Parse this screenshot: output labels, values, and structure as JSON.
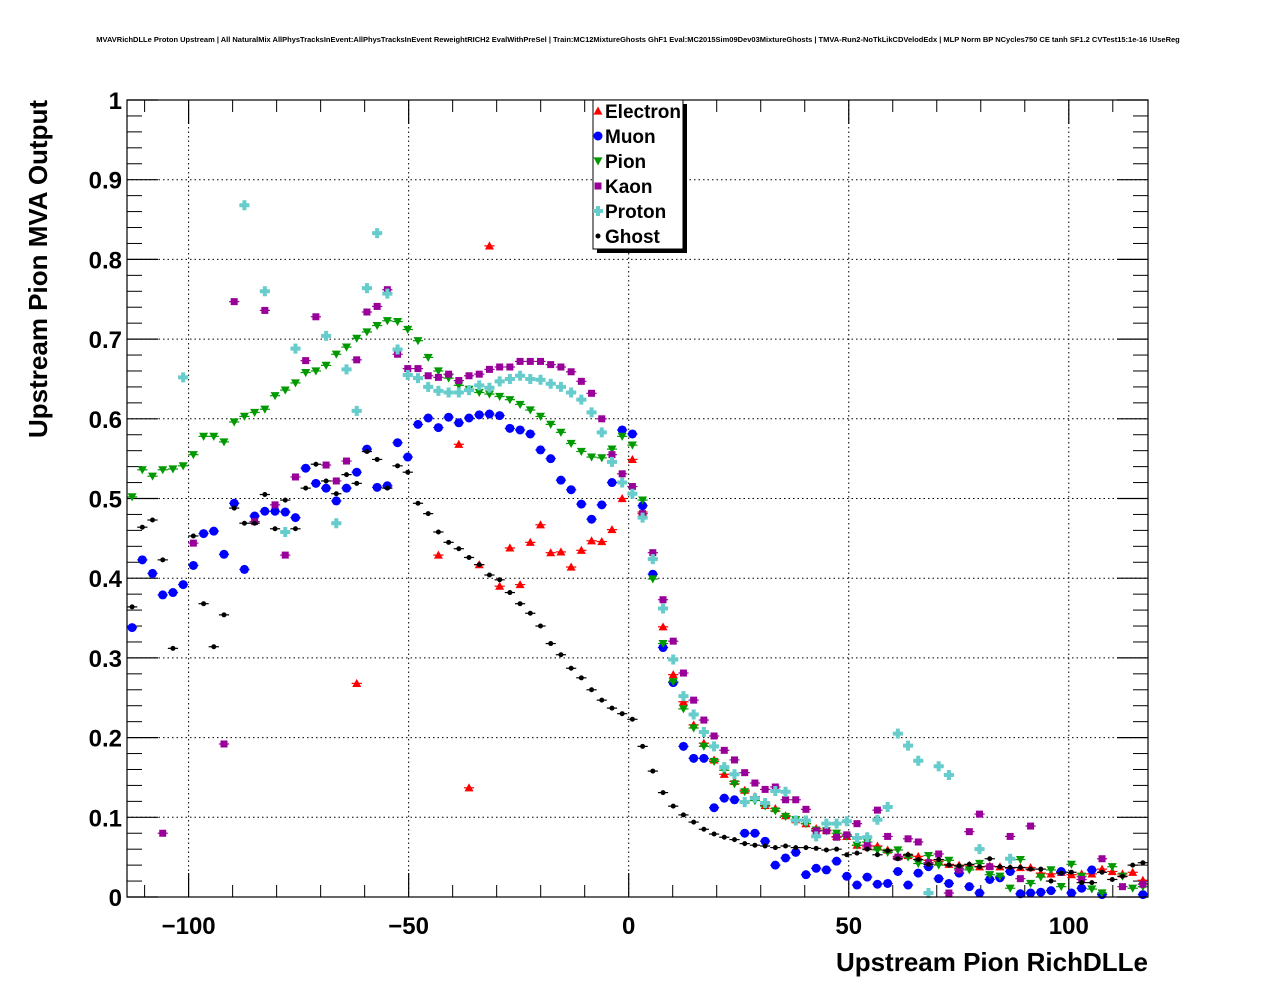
{
  "chart_data": {
    "type": "scatter",
    "title": "MVAVRichDLLe Proton Upstream | All NaturalMix AllPhysTracksInEvent:AllPhysTracksInEvent ReweightRICH2 EvalWithPreSel | Train:MC12MixtureGhosts GhF1 Eval:MC2015Sim09Dev03MixtureGhosts | TMVA-Run2-NoTkLikCDVelodEdx | MLP Norm BP NCycles750 CE tanh SF1.2 CVTest15:1e-16 !UseReg",
    "xlabel": "Upstream Pion RichDLLe",
    "ylabel": "Upstream Pion MVA Output",
    "xlim": [
      -114,
      118
    ],
    "ylim": [
      0,
      1
    ],
    "nbins": 100,
    "grid": true,
    "legend_position": "top-center",
    "x_ticks": [
      -100,
      -50,
      0,
      50,
      100
    ],
    "x_tick_labels": [
      "−100",
      "−50",
      "0",
      "50",
      "100"
    ],
    "y_ticks": [
      0,
      0.1,
      0.2,
      0.3,
      0.4,
      0.5,
      0.6,
      0.7,
      0.8,
      0.9,
      1
    ],
    "y_tick_labels": [
      "0",
      "0.1",
      "0.2",
      "0.3",
      "0.4",
      "0.5",
      "0.6",
      "0.7",
      "0.8",
      "0.9",
      "1"
    ],
    "series": [
      {
        "name": "Electron",
        "color": "#ff0000",
        "marker": "triangle-up",
        "values": [
          null,
          null,
          null,
          null,
          null,
          null,
          null,
          null,
          null,
          null,
          null,
          null,
          null,
          null,
          null,
          null,
          null,
          null,
          null,
          null,
          null,
          null,
          0.268,
          null,
          null,
          null,
          null,
          null,
          null,
          null,
          0.429,
          null,
          0.568,
          0.137,
          0.417,
          0.817,
          0.39,
          0.438,
          0.392,
          0.445,
          0.467,
          0.432,
          0.433,
          0.414,
          0.435,
          0.447,
          0.446,
          0.461,
          0.5,
          0.549,
          0.483,
          null,
          0.339,
          0.279,
          0.245,
          0.216,
          0.193,
          0.172,
          0.154,
          0.145,
          0.134,
          0.126,
          0.115,
          0.111,
          0.102,
          0.097,
          0.092,
          0.086,
          0.084,
          0.076,
          0.076,
          0.065,
          0.063,
          0.064,
          0.059,
          0.051,
          0.052,
          0.051,
          0.046,
          0.045,
          0.041,
          0.04,
          0.04,
          0.038,
          0.039,
          0.038,
          0.036,
          0.037,
          0.037,
          0.03,
          0.029,
          0.031,
          0.028,
          0.029,
          0.029,
          0.035,
          0.032,
          0.029,
          0.031,
          0.021
        ]
      },
      {
        "name": "Muon",
        "color": "#0000ff",
        "marker": "circle",
        "values": [
          0.338,
          0.423,
          0.406,
          0.379,
          0.382,
          0.392,
          0.416,
          0.456,
          0.459,
          0.43,
          0.494,
          0.411,
          0.478,
          0.484,
          0.484,
          0.483,
          0.476,
          0.538,
          0.519,
          0.513,
          0.497,
          0.513,
          0.533,
          0.562,
          0.514,
          0.516,
          0.57,
          0.552,
          0.593,
          0.601,
          0.589,
          0.602,
          0.595,
          0.601,
          0.605,
          0.606,
          0.604,
          0.588,
          0.586,
          0.581,
          0.561,
          0.55,
          0.523,
          0.511,
          0.493,
          0.474,
          0.492,
          0.52,
          0.586,
          0.581,
          0.491,
          0.405,
          0.313,
          0.269,
          0.189,
          0.174,
          0.174,
          0.112,
          0.124,
          0.122,
          0.08,
          0.08,
          0.07,
          0.04,
          0.049,
          0.056,
          0.028,
          0.036,
          0.034,
          0.045,
          0.026,
          0.015,
          0.025,
          0.016,
          0.017,
          0.032,
          0.015,
          0.03,
          0.038,
          0.023,
          0.017,
          0.03,
          0.013,
          0.005,
          0.022,
          0.024,
          0.032,
          0.004,
          0.005,
          0.006,
          0.008,
          0.032,
          0.005,
          0.011,
          0.034,
          0.003,
          null,
          null,
          null,
          0.003
        ]
      },
      {
        "name": "Pion",
        "color": "#009900",
        "marker": "triangle-down",
        "values": [
          0.502,
          0.536,
          0.528,
          0.536,
          0.537,
          0.541,
          0.555,
          0.578,
          0.578,
          0.571,
          0.596,
          0.603,
          0.608,
          0.612,
          0.629,
          0.636,
          0.645,
          0.658,
          0.66,
          0.667,
          0.681,
          0.69,
          0.701,
          0.709,
          0.717,
          0.723,
          0.722,
          0.712,
          0.698,
          0.677,
          0.66,
          0.651,
          0.642,
          0.637,
          0.633,
          0.631,
          0.628,
          0.624,
          0.618,
          0.611,
          0.603,
          0.593,
          0.583,
          0.569,
          0.559,
          0.552,
          0.551,
          0.562,
          0.578,
          0.567,
          0.498,
          0.399,
          0.318,
          0.27,
          0.236,
          0.212,
          0.189,
          0.17,
          0.159,
          0.142,
          0.132,
          0.121,
          0.114,
          0.108,
          0.101,
          0.097,
          0.092,
          0.084,
          0.083,
          0.08,
          0.076,
          0.065,
          0.069,
          0.059,
          0.056,
          0.059,
          0.05,
          0.042,
          0.052,
          0.04,
          0.046,
          0.036,
          0.034,
          0.042,
          0.028,
          0.026,
          0.011,
          0.047,
          0.017,
          0.025,
          0.034,
          0.013,
          0.041,
          0.026,
          0.01,
          0.005,
          0.038,
          0.026,
          0.011,
          0.013
        ]
      },
      {
        "name": "Kaon",
        "color": "#990099",
        "marker": "square",
        "values": [
          null,
          null,
          null,
          0.08,
          null,
          null,
          0.444,
          null,
          null,
          0.192,
          0.747,
          null,
          0.471,
          0.736,
          0.492,
          0.429,
          0.527,
          0.673,
          0.728,
          0.542,
          0.522,
          0.547,
          0.674,
          0.734,
          0.741,
          0.762,
          0.681,
          0.663,
          0.663,
          0.654,
          0.652,
          0.656,
          0.648,
          0.654,
          0.656,
          0.662,
          0.665,
          0.665,
          0.672,
          0.672,
          0.672,
          0.668,
          0.665,
          0.659,
          0.647,
          0.632,
          0.6,
          0.555,
          0.531,
          0.515,
          0.481,
          0.432,
          0.373,
          0.321,
          0.281,
          0.247,
          0.222,
          0.202,
          0.184,
          0.172,
          0.156,
          0.143,
          0.135,
          0.138,
          0.122,
          0.122,
          0.11,
          0.083,
          0.083,
          0.075,
          0.078,
          0.092,
          0.065,
          0.109,
          0.076,
          0.05,
          0.073,
          0.069,
          0.043,
          0.054,
          0.005,
          0.034,
          0.082,
          0.104,
          0.038,
          null,
          0.076,
          0.023,
          0.089,
          null,
          null,
          null,
          null,
          0.022,
          null,
          0.048,
          null,
          0.013,
          null,
          0.016
        ]
      },
      {
        "name": "Proton",
        "color": "#66cccc",
        "marker": "cross",
        "values": [
          null,
          null,
          null,
          null,
          null,
          0.652,
          null,
          null,
          null,
          null,
          null,
          0.868,
          null,
          0.76,
          null,
          0.458,
          0.688,
          null,
          null,
          0.704,
          0.469,
          0.662,
          0.61,
          0.764,
          0.833,
          0.757,
          0.687,
          0.655,
          0.651,
          0.64,
          0.635,
          0.633,
          0.633,
          0.636,
          0.642,
          0.639,
          0.647,
          0.65,
          0.654,
          0.65,
          0.649,
          0.644,
          0.64,
          0.633,
          0.624,
          0.608,
          0.583,
          0.546,
          0.52,
          0.506,
          0.476,
          0.424,
          0.362,
          0.298,
          0.252,
          0.229,
          0.207,
          0.189,
          0.163,
          0.154,
          0.119,
          0.124,
          0.118,
          0.133,
          0.132,
          0.096,
          0.096,
          0.076,
          0.092,
          0.092,
          0.095,
          0.074,
          0.075,
          0.097,
          0.113,
          0.205,
          0.19,
          0.171,
          0.005,
          0.164,
          0.153,
          null,
          null,
          0.06,
          null,
          null,
          0.048,
          null,
          null,
          null,
          null,
          null,
          null,
          null,
          null,
          null,
          null,
          null,
          null,
          null
        ]
      },
      {
        "name": "Ghost",
        "color": "#000000",
        "marker": "dot",
        "values": [
          0.364,
          0.464,
          0.473,
          0.423,
          0.312,
          null,
          0.453,
          0.368,
          0.314,
          0.354,
          0.488,
          0.469,
          0.469,
          0.505,
          0.462,
          0.498,
          0.462,
          0.513,
          0.543,
          0.522,
          0.506,
          0.53,
          0.519,
          0.559,
          0.549,
          0.513,
          0.541,
          0.533,
          0.494,
          0.481,
          0.458,
          0.445,
          0.437,
          0.426,
          0.417,
          0.404,
          0.398,
          0.382,
          0.368,
          0.356,
          0.34,
          0.318,
          0.304,
          0.287,
          0.275,
          0.26,
          0.247,
          0.237,
          0.23,
          0.223,
          0.189,
          0.158,
          0.131,
          0.114,
          0.103,
          0.094,
          0.085,
          0.079,
          0.075,
          0.072,
          0.067,
          0.065,
          0.064,
          0.062,
          0.064,
          0.062,
          0.062,
          0.061,
          0.059,
          0.06,
          0.053,
          0.055,
          0.06,
          0.053,
          0.058,
          0.048,
          0.053,
          0.047,
          0.041,
          0.047,
          0.04,
          0.039,
          0.041,
          0.038,
          0.048,
          0.038,
          0.037,
          0.037,
          0.035,
          0.035,
          0.02,
          0.03,
          0.031,
          0.018,
          0.018,
          0.031,
          0.022,
          0.026,
          0.04,
          0.043
        ]
      }
    ]
  }
}
